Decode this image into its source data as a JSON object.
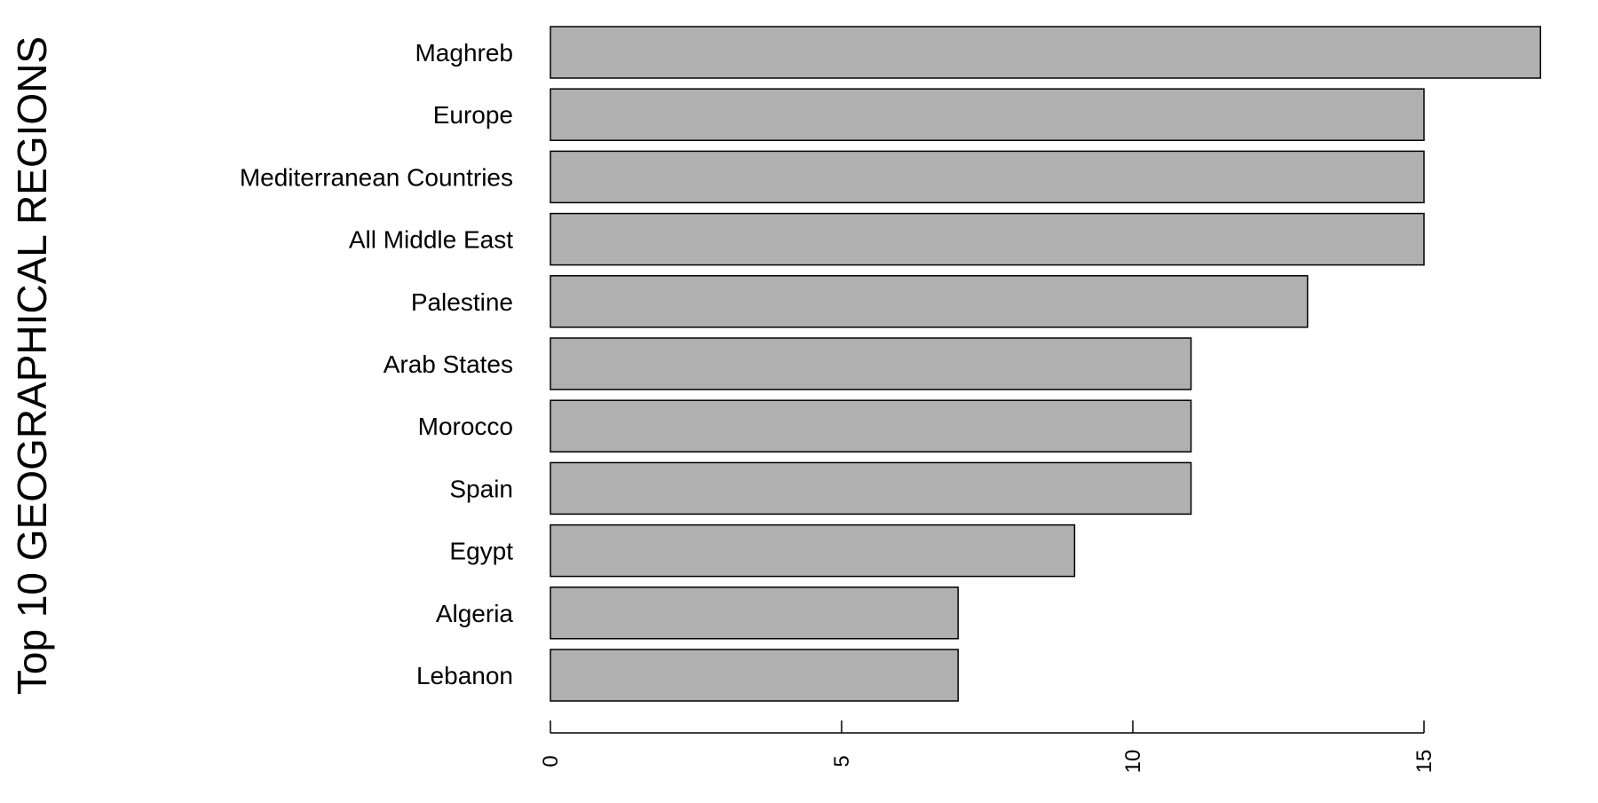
{
  "chart_data": {
    "type": "bar",
    "orientation": "horizontal",
    "ylabel": "Top 10 GEOGRAPHICAL REGIONS",
    "xlabel": "",
    "categories": [
      "Maghreb",
      "Europe",
      "Mediterranean Countries",
      "All Middle East",
      "Palestine",
      "Arab States",
      "Morocco",
      "Spain",
      "Egypt",
      "Algeria",
      "Lebanon"
    ],
    "values": [
      17,
      15,
      15,
      15,
      13,
      11,
      11,
      11,
      9,
      7,
      7
    ],
    "xlim": [
      0,
      17
    ],
    "xticks": [
      0,
      5,
      10,
      15
    ],
    "bar_color": "#b0b0b0",
    "grid": false,
    "legend": "none"
  }
}
